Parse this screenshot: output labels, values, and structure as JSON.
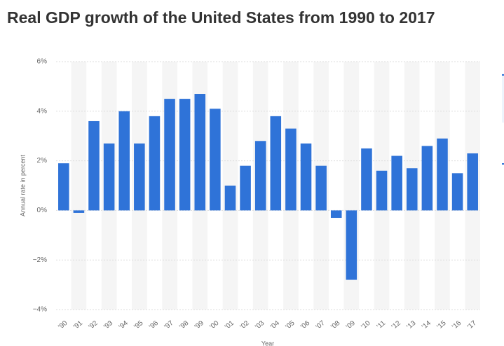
{
  "chart_data": {
    "type": "bar",
    "title": "Real GDP growth of the United States from 1990 to 2017",
    "y_label": "Annual rate in percent",
    "x_label": "Year",
    "categories": [
      "'90",
      "'91",
      "'92",
      "'93",
      "'94",
      "'95",
      "'96",
      "'97",
      "'98",
      "'99",
      "'00",
      "'01",
      "'02",
      "'03",
      "'04",
      "'05",
      "'06",
      "'07",
      "'08",
      "'09",
      "'10",
      "'11",
      "'12",
      "'13",
      "'14",
      "'15",
      "'16",
      "'17"
    ],
    "values": [
      1.9,
      -0.1,
      3.6,
      2.7,
      4.0,
      2.7,
      3.8,
      4.5,
      4.5,
      4.7,
      4.1,
      1.0,
      1.8,
      2.8,
      3.8,
      3.3,
      2.7,
      1.8,
      -0.3,
      -2.8,
      2.5,
      1.6,
      2.2,
      1.7,
      2.6,
      2.9,
      1.5,
      2.3
    ],
    "color": "#2f73d8",
    "ylim": [
      -4,
      6
    ],
    "yticks": [
      {
        "value": -4,
        "label": "−4%"
      },
      {
        "value": -2,
        "label": "−2%"
      },
      {
        "value": 0,
        "label": "0%"
      },
      {
        "value": 2,
        "label": "2%"
      },
      {
        "value": 4,
        "label": "4%"
      },
      {
        "value": 6,
        "label": "6%"
      }
    ],
    "grid": true
  }
}
